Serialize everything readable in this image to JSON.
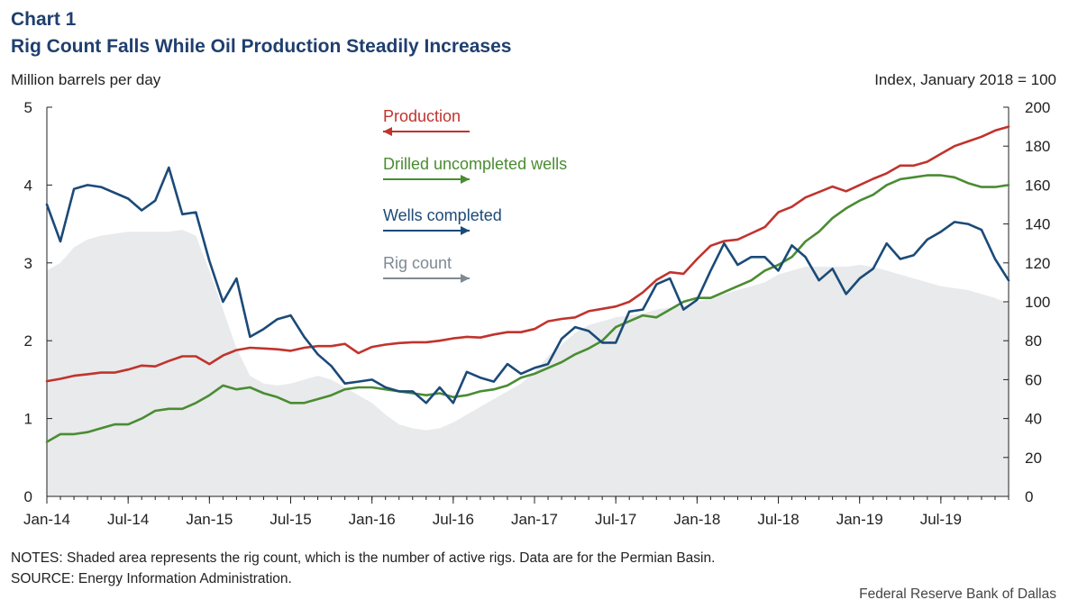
{
  "header": {
    "chart_number": "Chart 1",
    "title": "Rig Count Falls While Oil Production Steadily Increases"
  },
  "footer": {
    "notes": "NOTES: Shaded area represents the rig count, which is the number of active rigs. Data are for the Permian Basin.",
    "source": "SOURCE: Energy Information Administration.",
    "credit": "Federal Reserve Bank of Dallas"
  },
  "chart_data": {
    "type": "line",
    "x": [
      "Jan-14",
      "Feb-14",
      "Mar-14",
      "Apr-14",
      "May-14",
      "Jun-14",
      "Jul-14",
      "Aug-14",
      "Sep-14",
      "Oct-14",
      "Nov-14",
      "Dec-14",
      "Jan-15",
      "Feb-15",
      "Mar-15",
      "Apr-15",
      "May-15",
      "Jun-15",
      "Jul-15",
      "Aug-15",
      "Sep-15",
      "Oct-15",
      "Nov-15",
      "Dec-15",
      "Jan-16",
      "Feb-16",
      "Mar-16",
      "Apr-16",
      "May-16",
      "Jun-16",
      "Jul-16",
      "Aug-16",
      "Sep-16",
      "Oct-16",
      "Nov-16",
      "Dec-16",
      "Jan-17",
      "Feb-17",
      "Mar-17",
      "Apr-17",
      "May-17",
      "Jun-17",
      "Jul-17",
      "Aug-17",
      "Sep-17",
      "Oct-17",
      "Nov-17",
      "Dec-17",
      "Jan-18",
      "Feb-18",
      "Mar-18",
      "Apr-18",
      "May-18",
      "Jun-18",
      "Jul-18",
      "Aug-18",
      "Sep-18",
      "Oct-18",
      "Nov-18",
      "Dec-18",
      "Jan-19",
      "Feb-19",
      "Mar-19",
      "Apr-19",
      "May-19",
      "Jun-19",
      "Jul-19",
      "Aug-19",
      "Sep-19",
      "Oct-19",
      "Nov-19",
      "Dec-19"
    ],
    "x_tick_labels": [
      "Jan-14",
      "Jul-14",
      "Jan-15",
      "Jul-15",
      "Jan-16",
      "Jul-16",
      "Jan-17",
      "Jul-17",
      "Jan-18",
      "Jul-18",
      "Jan-19",
      "Jul-19"
    ],
    "ylabel_left": "Million barrels per day",
    "ylabel_right": "Index, January 2018 = 100",
    "ylim_left": [
      0,
      5
    ],
    "ylim_right": [
      0,
      200
    ],
    "yticks_left": [
      0,
      1,
      2,
      3,
      4,
      5
    ],
    "yticks_right": [
      0,
      20,
      40,
      60,
      80,
      100,
      120,
      140,
      160,
      180,
      200
    ],
    "grid": false,
    "series": [
      {
        "name": "Rig count",
        "axis": "right",
        "kind": "area",
        "color": "#e8eaeb",
        "legend_color": "#7f8a93",
        "values": [
          116,
          120,
          128,
          132,
          134,
          135,
          136,
          136,
          136,
          136,
          137,
          134,
          116,
          96,
          76,
          62,
          58,
          57,
          58,
          60,
          62,
          60,
          56,
          52,
          48,
          42,
          37,
          35,
          34,
          35,
          38,
          42,
          46,
          50,
          54,
          58,
          64,
          72,
          78,
          84,
          88,
          90,
          92,
          93,
          94,
          96,
          97,
          98,
          100,
          102,
          104,
          106,
          108,
          110,
          114,
          116,
          118,
          118,
          118,
          118,
          119,
          118,
          116,
          114,
          112,
          110,
          108,
          107,
          106,
          104,
          102,
          99
        ]
      },
      {
        "name": "Production",
        "axis": "left",
        "kind": "line",
        "color": "#c1332d",
        "values": [
          1.48,
          1.51,
          1.55,
          1.57,
          1.59,
          1.59,
          1.63,
          1.68,
          1.67,
          1.74,
          1.8,
          1.8,
          1.7,
          1.81,
          1.88,
          1.91,
          1.9,
          1.89,
          1.87,
          1.91,
          1.93,
          1.93,
          1.96,
          1.84,
          1.92,
          1.95,
          1.97,
          1.98,
          1.98,
          2.0,
          2.03,
          2.05,
          2.04,
          2.08,
          2.11,
          2.11,
          2.15,
          2.25,
          2.28,
          2.3,
          2.38,
          2.41,
          2.44,
          2.5,
          2.62,
          2.78,
          2.88,
          2.86,
          3.05,
          3.22,
          3.28,
          3.3,
          3.38,
          3.46,
          3.65,
          3.72,
          3.84,
          3.91,
          3.98,
          3.92,
          4.0,
          4.08,
          4.15,
          4.25,
          4.25,
          4.3,
          4.4,
          4.5,
          4.56,
          4.62,
          4.7,
          4.75
        ]
      },
      {
        "name": "Drilled uncompleted wells",
        "axis": "right",
        "kind": "line",
        "color": "#4a8c32",
        "values": [
          28,
          32,
          32,
          33,
          35,
          37,
          37,
          40,
          44,
          45,
          45,
          48,
          52,
          57,
          55,
          56,
          53,
          51,
          48,
          48,
          50,
          52,
          55,
          56,
          56,
          55,
          54,
          53,
          52,
          53,
          51,
          52,
          54,
          55,
          57,
          61,
          63,
          66,
          69,
          73,
          76,
          80,
          87,
          90,
          93,
          92,
          96,
          100,
          102,
          102,
          105,
          108,
          111,
          116,
          119,
          123,
          131,
          136,
          143,
          148,
          152,
          155,
          160,
          163,
          164,
          165,
          165,
          164,
          161,
          159,
          159,
          160
        ]
      },
      {
        "name": "Wells completed",
        "axis": "right",
        "kind": "line",
        "color": "#1b4a78",
        "values": [
          150,
          131,
          158,
          160,
          159,
          156,
          153,
          147,
          152,
          169,
          145,
          146,
          121,
          100,
          112,
          82,
          86,
          91,
          93,
          82,
          73,
          67,
          58,
          59,
          60,
          56,
          54,
          54,
          48,
          56,
          48,
          64,
          61,
          59,
          68,
          63,
          66,
          68,
          81,
          87,
          85,
          79,
          79,
          95,
          96,
          109,
          112,
          96,
          101,
          116,
          130,
          119,
          123,
          123,
          116,
          129,
          123,
          111,
          117,
          104,
          112,
          117,
          130,
          122,
          124,
          132,
          136,
          141,
          140,
          137,
          122,
          111
        ]
      }
    ]
  }
}
